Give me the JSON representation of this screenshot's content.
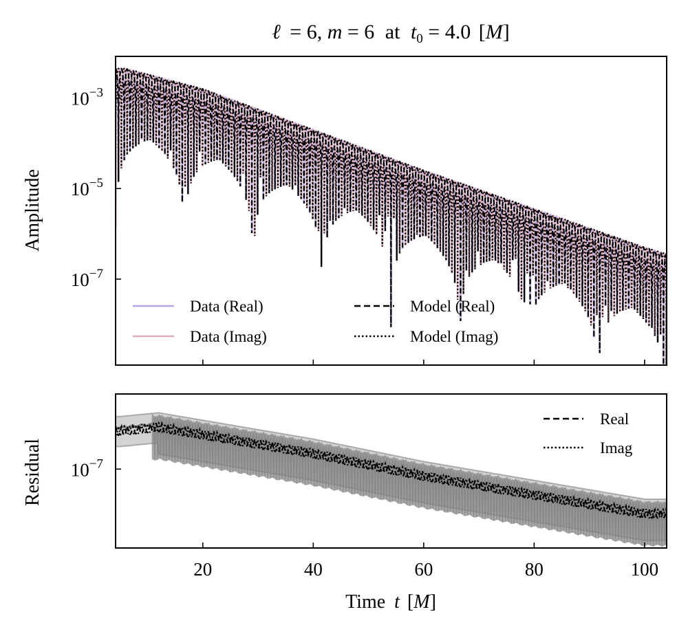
{
  "chart_data": [
    {
      "type": "line",
      "panel": "top",
      "title": "ℓ = 6, m = 6 at t₀ = 4.0 [M]",
      "title_parts": {
        "ell": "ℓ",
        "l_val": "6",
        "m": "m",
        "m_val": "6",
        "at": "at",
        "t0": "t",
        "t0_sub": "0",
        "t0_val": "4.0",
        "unit": "M"
      },
      "xlabel": "",
      "ylabel": "Amplitude",
      "yscale": "log",
      "xlim": [
        4.2,
        104.0
      ],
      "ylim_log10": [
        -8.9,
        -2.08
      ],
      "yticks": [
        {
          "base": "10",
          "exp": "−3",
          "value": 0.001
        },
        {
          "base": "10",
          "exp": "−5",
          "value": 1e-05
        },
        {
          "base": "10",
          "exp": "−7",
          "value": 1e-07
        }
      ],
      "xticks": [
        20,
        40,
        60,
        80,
        100
      ],
      "xtick_labels_visible": false,
      "legend": {
        "placement": "lower-left",
        "columns": 2,
        "entries": [
          {
            "label": "Data (Real)",
            "color": "#b9a3db",
            "style": "solid"
          },
          {
            "label": "Data (Imag)",
            "color": "#dcaab9",
            "style": "solid"
          },
          {
            "label": "Model (Real)",
            "color": "#000000",
            "style": "dashed"
          },
          {
            "label": "Model (Imag)",
            "color": "#000000",
            "style": "dotted"
          }
        ]
      },
      "series": [
        {
          "name": "Data (Real)",
          "kind": "|Re h| decaying oscillation",
          "envelope_log10_at_t": [
            [
              6,
              -2.35
            ],
            [
              20,
              -2.8
            ],
            [
              40,
              -3.7
            ],
            [
              60,
              -4.6
            ],
            [
              80,
              -5.45
            ],
            [
              100,
              -6.3
            ],
            [
              104,
              -6.45
            ]
          ],
          "period_M": 1.05,
          "color": "#b9a3db"
        },
        {
          "name": "Data (Imag)",
          "kind": "|Im h| decaying oscillation",
          "envelope_log10_at_t": [
            [
              6,
              -2.35
            ],
            [
              20,
              -2.8
            ],
            [
              40,
              -3.7
            ],
            [
              60,
              -4.6
            ],
            [
              80,
              -5.45
            ],
            [
              100,
              -6.3
            ],
            [
              104,
              -6.45
            ]
          ],
          "period_M": 1.05,
          "color": "#dcaab9"
        },
        {
          "name": "Model (Real)",
          "kind": "QNM fit, real part",
          "color": "#000000"
        },
        {
          "name": "Model (Imag)",
          "kind": "QNM fit, imaginary part",
          "color": "#000000"
        }
      ]
    },
    {
      "type": "line",
      "panel": "bottom",
      "xlabel": "Time t [M]",
      "xlabel_parts": {
        "text": "Time",
        "var": "t",
        "unit": "M"
      },
      "ylabel": "Residual",
      "yscale": "log",
      "xlim": [
        4.2,
        104.0
      ],
      "yticks": [
        {
          "base": "10",
          "exp": "−7",
          "value": 1e-07
        }
      ],
      "xticks": [
        20,
        40,
        60,
        80,
        100
      ],
      "xtick_labels": [
        "20",
        "40",
        "60",
        "80",
        "100"
      ],
      "legend": {
        "placement": "upper-right",
        "columns": 1,
        "entries": [
          {
            "label": "Real",
            "color": "#000000",
            "style": "dashed"
          },
          {
            "label": "Imag",
            "color": "#000000",
            "style": "dotted"
          }
        ]
      },
      "series": [
        {
          "name": "Real",
          "kind": "residual envelope",
          "envelope_log10_at_t": [
            [
              5,
              -6.35
            ],
            [
              12,
              -6.3
            ],
            [
              20,
              -6.4
            ],
            [
              40,
              -6.65
            ],
            [
              60,
              -6.95
            ],
            [
              80,
              -7.2
            ],
            [
              100,
              -7.45
            ]
          ]
        },
        {
          "name": "Imag",
          "kind": "residual envelope",
          "envelope_log10_at_t": [
            [
              5,
              -6.35
            ],
            [
              10,
              -6.2
            ],
            [
              20,
              -6.4
            ],
            [
              40,
              -6.65
            ],
            [
              60,
              -6.95
            ],
            [
              80,
              -7.2
            ],
            [
              100,
              -7.45
            ]
          ]
        }
      ],
      "shaded_band_color": "#808080"
    }
  ]
}
